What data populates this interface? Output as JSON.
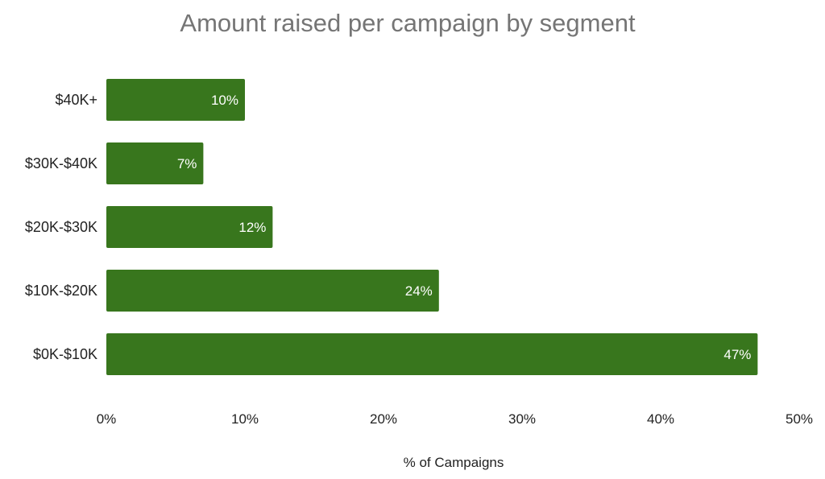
{
  "chart_data": {
    "type": "bar",
    "orientation": "horizontal",
    "title": "Amount raised per campaign by segment",
    "xlabel": "% of Campaigns",
    "ylabel": "",
    "categories": [
      "$40K+",
      "$30K-$40K",
      "$20K-$30K",
      "$10K-$20K",
      "$0K-$10K"
    ],
    "values": [
      10,
      7,
      12,
      24,
      47
    ],
    "value_labels": [
      "10%",
      "7%",
      "12%",
      "24%",
      "47%"
    ],
    "xlim": [
      0,
      50
    ],
    "xticks": [
      0,
      10,
      20,
      30,
      40,
      50
    ],
    "xtick_labels": [
      "0%",
      "10%",
      "20%",
      "30%",
      "40%",
      "50%"
    ],
    "grid": false,
    "legend": "none",
    "bar_color": "#38761d",
    "bar_label_color": "#ffffff",
    "title_color": "#757575"
  }
}
